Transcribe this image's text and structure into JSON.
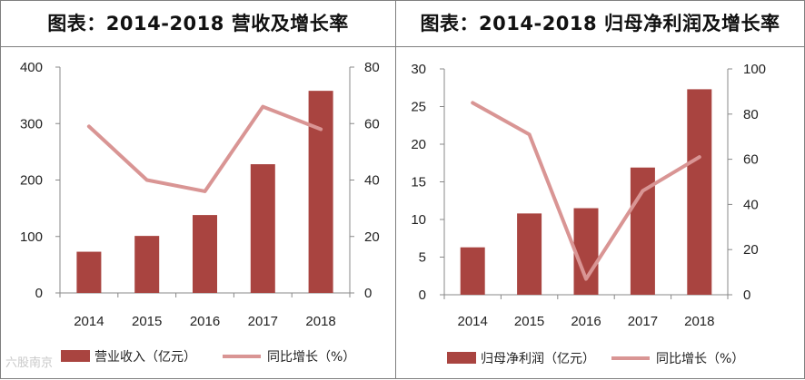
{
  "chart_data": [
    {
      "type": "bar+line",
      "title": "图表：2014-2018 营收及增长率",
      "categories": [
        "2014",
        "2015",
        "2016",
        "2017",
        "2018"
      ],
      "series": [
        {
          "name": "营业收入（亿元）",
          "type": "bar",
          "axis": "left",
          "values": [
            73,
            101,
            138,
            228,
            358
          ]
        },
        {
          "name": "同比增长（%）",
          "type": "line",
          "axis": "right",
          "values": [
            59,
            40,
            36,
            66,
            58
          ]
        }
      ],
      "ylim_left": [
        0,
        400
      ],
      "yticks_left": [
        0,
        100,
        200,
        300,
        400
      ],
      "ylim_right": [
        0,
        80
      ],
      "yticks_right": [
        0,
        20,
        40,
        60,
        80
      ],
      "legend": [
        "营业收入（亿元）",
        "同比增长（%）"
      ],
      "legend_position": "bottom"
    },
    {
      "type": "bar+line",
      "title": "图表：2014-2018 归母净利润及增长率",
      "categories": [
        "2014",
        "2015",
        "2016",
        "2017",
        "2018"
      ],
      "series": [
        {
          "name": "归母净利润（亿元）",
          "type": "bar",
          "axis": "left",
          "values": [
            6.3,
            10.8,
            11.5,
            16.9,
            27.3
          ]
        },
        {
          "name": "同比增长（%）",
          "type": "line",
          "axis": "right",
          "values": [
            85,
            71,
            7,
            46,
            61
          ]
        }
      ],
      "ylim_left": [
        0,
        30
      ],
      "yticks_left": [
        0,
        5,
        10,
        15,
        20,
        25,
        30
      ],
      "ylim_right": [
        0,
        100
      ],
      "yticks_right": [
        0,
        20,
        40,
        60,
        80,
        100
      ],
      "legend": [
        "归母净利润（亿元）",
        "同比增长（%）"
      ],
      "legend_position": "bottom"
    }
  ],
  "colors": {
    "bar": "#a94440",
    "line": "#d99594"
  },
  "watermark": "六股南京"
}
